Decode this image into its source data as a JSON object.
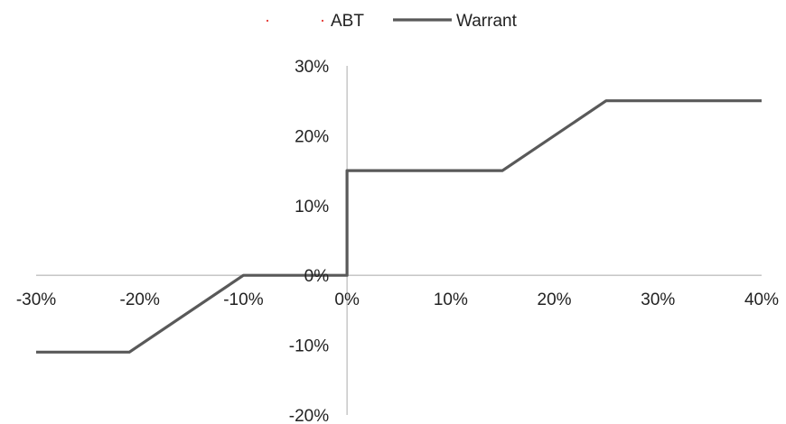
{
  "chart_data": {
    "type": "line",
    "title": "",
    "xlabel": "",
    "ylabel": "",
    "xlim": [
      -0.3,
      0.4
    ],
    "ylim": [
      -0.2,
      0.3
    ],
    "x_ticks": [
      -0.3,
      -0.2,
      -0.1,
      0.0,
      0.1,
      0.2,
      0.3,
      0.4
    ],
    "x_tick_labels": [
      "-30%",
      "-20%",
      "-10%",
      "0%",
      "10%",
      "20%",
      "30%",
      "40%"
    ],
    "y_ticks": [
      0.3,
      0.2,
      0.1,
      0.0,
      -0.1,
      -0.2
    ],
    "y_tick_labels": [
      "30%",
      "20%",
      "10%",
      "0%",
      "-10%",
      "-20%"
    ],
    "grid": false,
    "legend_position": "top-center",
    "series": [
      {
        "name": "ABT",
        "color": "#e3342f",
        "style": "dotted",
        "x": [],
        "y": []
      },
      {
        "name": "Warrant",
        "color": "#595959",
        "style": "solid",
        "x": [
          -0.3,
          -0.21,
          -0.1,
          0.0,
          0.0,
          0.15,
          0.25,
          0.4
        ],
        "y": [
          -0.11,
          -0.11,
          0.0,
          0.0,
          0.15,
          0.15,
          0.25,
          0.25
        ]
      }
    ]
  }
}
